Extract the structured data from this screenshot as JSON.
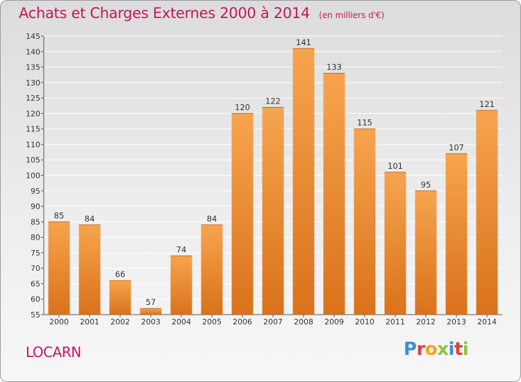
{
  "title": "Achats et Charges Externes 2000 à 2014",
  "unit_note": "(en milliers d'€)",
  "commune": "LOCARN",
  "logo": "Proxiti",
  "colors": {
    "title": "#c2185b",
    "bar_top": "#f7a44e",
    "bar_bottom": "#d9721b",
    "grid": "#ffffff"
  },
  "chart_data": {
    "type": "bar",
    "categories": [
      "2000",
      "2001",
      "2002",
      "2003",
      "2004",
      "2005",
      "2006",
      "2007",
      "2008",
      "2009",
      "2010",
      "2011",
      "2012",
      "2013",
      "2014"
    ],
    "values": [
      85,
      84,
      66,
      57,
      74,
      84,
      120,
      122,
      141,
      133,
      115,
      101,
      95,
      107,
      121
    ],
    "ylim": [
      55,
      145
    ],
    "yticks": [
      55,
      60,
      65,
      70,
      75,
      80,
      85,
      90,
      95,
      100,
      105,
      110,
      115,
      120,
      125,
      130,
      135,
      140,
      145
    ],
    "grid": true,
    "data_labels": true
  }
}
